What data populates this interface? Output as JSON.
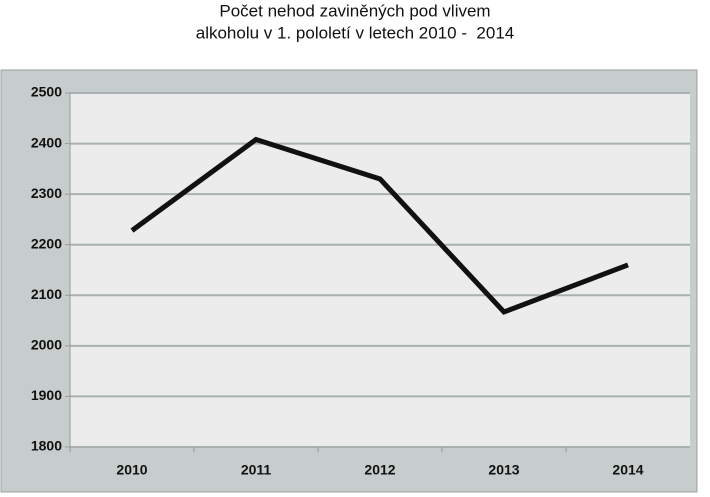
{
  "chart_data": {
    "type": "line",
    "title": [
      "Počet nehod zaviněných pod vlivem",
      "alkoholu v 1. pololetí v letech 2010 -  2014"
    ],
    "categories": [
      "2010",
      "2011",
      "2012",
      "2013",
      "2014"
    ],
    "series": [
      {
        "name": "Počet nehod",
        "color": "#111111",
        "values": [
          2228,
          2408,
          2330,
          2067,
          2160
        ]
      }
    ],
    "ylim": [
      1800,
      2500
    ],
    "yticks": [
      1800,
      1900,
      2000,
      2100,
      2200,
      2300,
      2400,
      2500
    ],
    "grid": true
  }
}
